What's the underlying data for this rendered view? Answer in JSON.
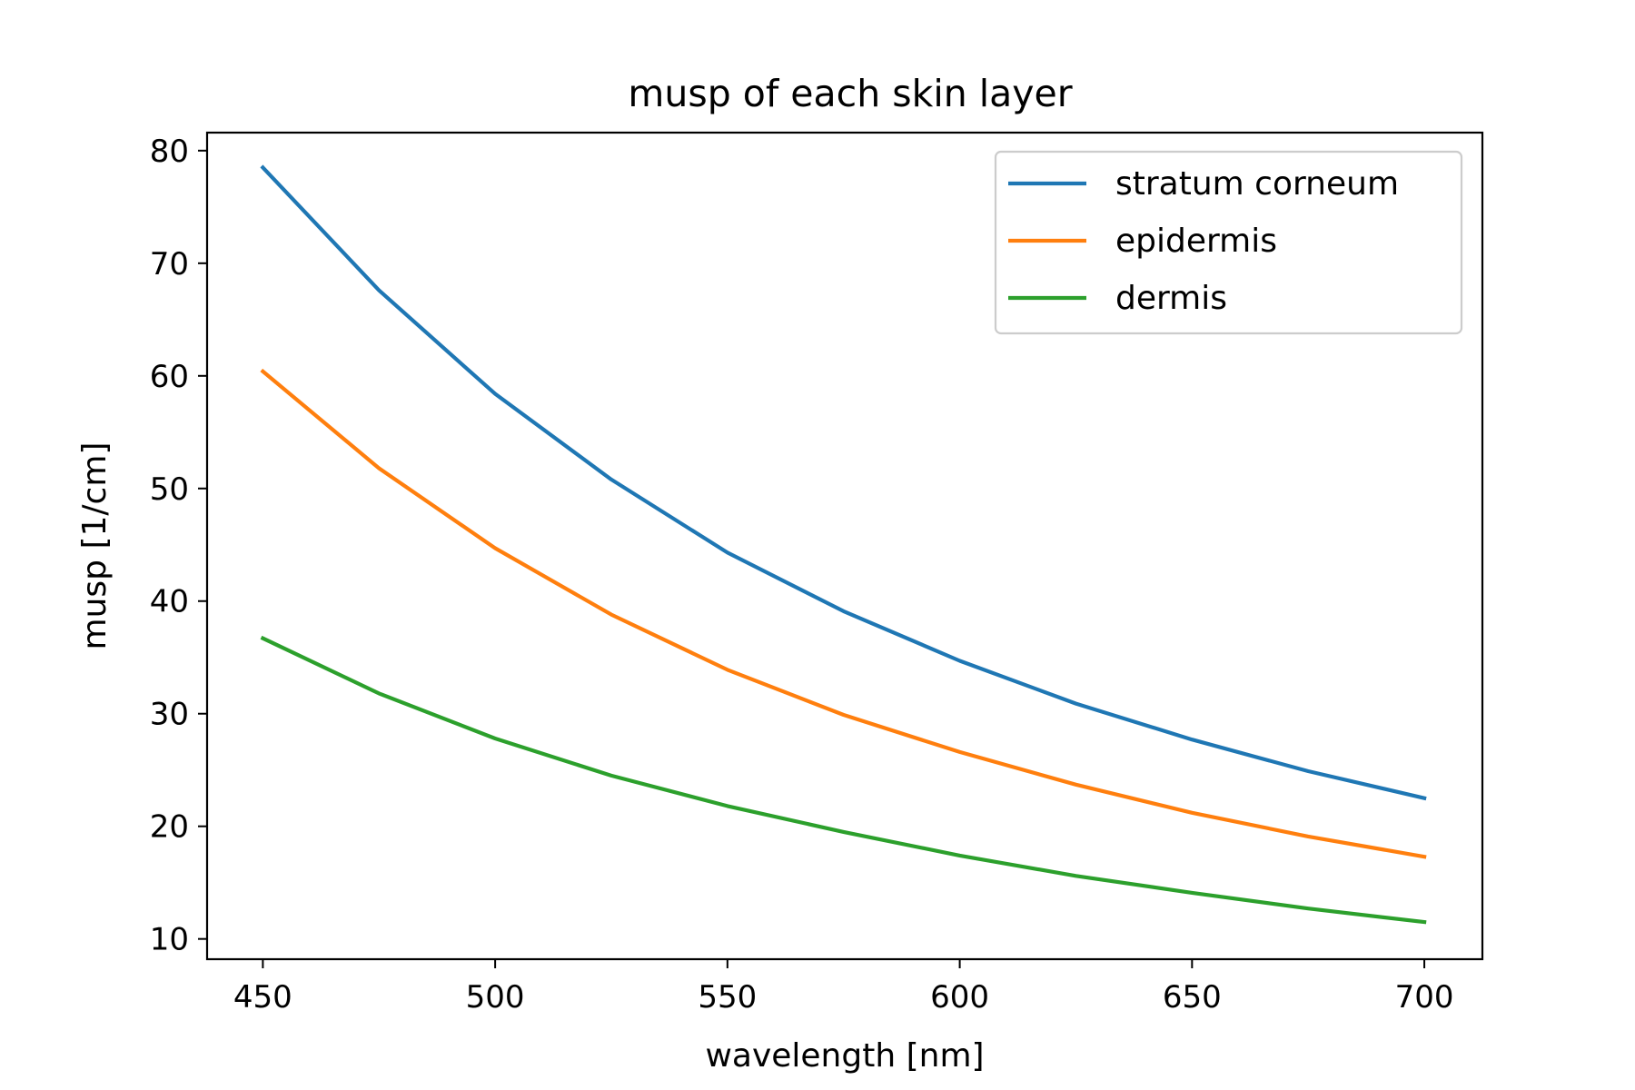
{
  "chart_data": {
    "type": "line",
    "title": "musp of each skin layer",
    "xlabel": "wavelength [nm]",
    "ylabel": "musp [1/cm]",
    "xlim": [
      438,
      712.5
    ],
    "ylim": [
      8.2,
      81.6
    ],
    "xticks": [
      450,
      500,
      550,
      600,
      650,
      700
    ],
    "yticks": [
      10,
      20,
      30,
      40,
      50,
      60,
      70,
      80
    ],
    "grid": false,
    "legend_position": "top-right",
    "x": [
      450,
      475,
      500,
      525,
      550,
      575,
      600,
      625,
      650,
      675,
      700
    ],
    "series": [
      {
        "name": "stratum corneum",
        "color": "#1f77b4",
        "values": [
          78.5,
          67.6,
          58.4,
          50.8,
          44.3,
          39.1,
          34.7,
          30.9,
          27.7,
          24.9,
          22.5
        ]
      },
      {
        "name": "epidermis",
        "color": "#ff7f0e",
        "values": [
          60.4,
          51.8,
          44.7,
          38.8,
          33.9,
          29.9,
          26.6,
          23.7,
          21.2,
          19.1,
          17.3
        ]
      },
      {
        "name": "dermis",
        "color": "#2ca02c",
        "values": [
          36.7,
          31.8,
          27.8,
          24.5,
          21.8,
          19.5,
          17.4,
          15.6,
          14.1,
          12.7,
          11.5
        ]
      }
    ]
  }
}
